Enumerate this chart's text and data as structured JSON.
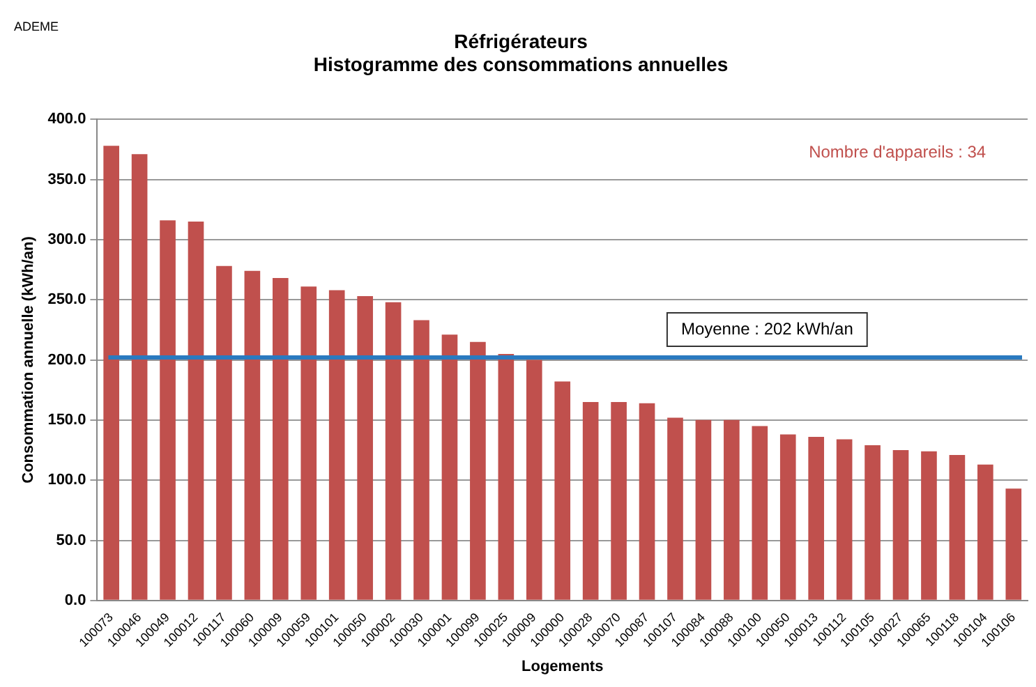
{
  "chart_data": {
    "type": "bar",
    "title": "Réfrigérateurs",
    "subtitle": "Histogramme des consommations annuelles",
    "xlabel": "Logements",
    "ylabel": "Consommation annuelle (kWh/an)",
    "categories": [
      "100073",
      "100046",
      "100049",
      "100012",
      "100117",
      "100060",
      "100009",
      "100059",
      "100101",
      "100050",
      "100002",
      "100030",
      "100001",
      "100099",
      "100025",
      "100009",
      "100000",
      "100028",
      "100070",
      "100087",
      "100107",
      "100084",
      "100088",
      "100100",
      "100050",
      "100013",
      "100112",
      "100105",
      "100027",
      "100065",
      "100118",
      "100104",
      "100106"
    ],
    "values": [
      378,
      371,
      316,
      315,
      278,
      274,
      268,
      261,
      258,
      253,
      248,
      233,
      221,
      215,
      205,
      200,
      182,
      165,
      165,
      164,
      152,
      150,
      150,
      145,
      138,
      136,
      134,
      129,
      125,
      124,
      121,
      113,
      93
    ],
    "color": "#c0504d",
    "ylim": [
      0,
      400
    ],
    "yticks": [
      {
        "value": 0,
        "label": "0.0"
      },
      {
        "value": 50,
        "label": "50.0"
      },
      {
        "value": 100,
        "label": "100.0"
      },
      {
        "value": 150,
        "label": "150.0"
      },
      {
        "value": 200,
        "label": "200.0"
      },
      {
        "value": 250,
        "label": "250.0"
      },
      {
        "value": 300,
        "label": "300.0"
      },
      {
        "value": 350,
        "label": "350.0"
      },
      {
        "value": 400,
        "label": "400.0"
      }
    ],
    "grid": "y",
    "legend": false,
    "ref_lines": [
      {
        "axis": "y",
        "value": 202,
        "label": "Moyenne : 202 kWh/an",
        "color": "#2a7ac0"
      }
    ],
    "annotations": [
      "ADEME",
      "Nombre d'appareils : 34"
    ]
  }
}
